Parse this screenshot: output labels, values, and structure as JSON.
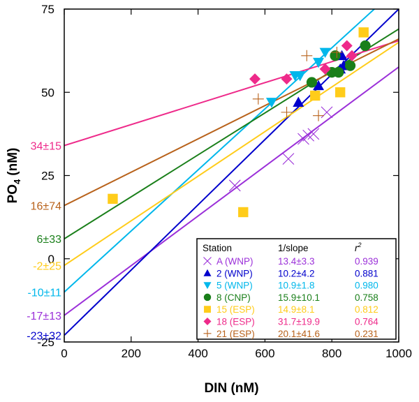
{
  "chart_data": {
    "type": "scatter",
    "xlabel": "DIN (nM)",
    "ylabel": "PO4 (nM)",
    "ylabel_main": "PO",
    "ylabel_sub": "4",
    "ylabel_unit": "(nM)",
    "xlim": [
      0,
      1000
    ],
    "ylim": [
      -25,
      75
    ],
    "xticks": [
      "0",
      "200",
      "400",
      "600",
      "800",
      "1000"
    ],
    "yticks": [
      "-25",
      "0",
      "25",
      "50",
      "75"
    ],
    "legend": {
      "position": "bottom-right",
      "headers": {
        "station": "Station",
        "slope": "1/slope",
        "r2_main": "r",
        "r2_sup": "2"
      }
    },
    "series": [
      {
        "name": "A (WNP)",
        "marker": "x",
        "color": "#9b30d9",
        "slope_text": "13.4±3.3",
        "r2": "0.939",
        "intercept_label": "-17±13",
        "line_y0": -17,
        "line_y1": 57.6,
        "x": [
          510,
          670,
          715,
          730,
          745,
          785
        ],
        "y": [
          22,
          30,
          36,
          37,
          37.5,
          44
        ]
      },
      {
        "name": "2 (WNP)",
        "marker": "triangle-up",
        "color": "#0000cc",
        "slope_text": "10.2±4.2",
        "r2": "0.881",
        "intercept_label": "-23±32",
        "line_y0": -23,
        "line_y1": 75,
        "x": [
          700,
          760,
          825,
          835,
          830
        ],
        "y": [
          47,
          52,
          57,
          58,
          61
        ]
      },
      {
        "name": "5 (WNP)",
        "marker": "triangle-down",
        "color": "#00b7eb",
        "slope_text": "10.9±1.8",
        "r2": "0.980",
        "intercept_label": "-10±11",
        "line_y0": -10,
        "line_y1": 81.7,
        "x": [
          620,
          690,
          705,
          760,
          780
        ],
        "y": [
          47,
          55,
          55,
          59,
          62
        ]
      },
      {
        "name": "8 (CNP)",
        "marker": "circle",
        "color": "#1a7f1a",
        "slope_text": "15.9±10.1",
        "r2": "0.758",
        "intercept_label": "6±33",
        "line_y0": 6,
        "line_y1": 69,
        "x": [
          740,
          800,
          810,
          820,
          855,
          900
        ],
        "y": [
          53,
          56,
          61,
          56,
          58,
          64
        ]
      },
      {
        "name": "15 (ESP)",
        "marker": "square",
        "color": "#ffcc1a",
        "slope_text": "14.9±8.1",
        "r2": "0.812",
        "intercept_label": "-2±25",
        "line_y0": -2,
        "line_y1": 65,
        "x": [
          145,
          535,
          750,
          825,
          895
        ],
        "y": [
          18,
          14,
          49,
          50,
          68
        ]
      },
      {
        "name": "18 (ESP)",
        "marker": "diamond",
        "color": "#ee2a8a",
        "slope_text": "31.7±19.9",
        "r2": "0.764",
        "intercept_label": "34±15",
        "line_y0": 34,
        "line_y1": 65.5,
        "x": [
          570,
          665,
          780,
          845,
          860
        ],
        "y": [
          54,
          54,
          57,
          64,
          61
        ]
      },
      {
        "name": "21 (ESP)",
        "marker": "plus",
        "color": "#b8621b",
        "slope_text": "20.1±41.6",
        "r2": "0.231",
        "intercept_label": "16±74",
        "line_y0": 16,
        "line_y1": 66,
        "x": [
          580,
          665,
          725,
          760,
          815
        ],
        "y": [
          48,
          44,
          61,
          43,
          62
        ]
      }
    ]
  }
}
